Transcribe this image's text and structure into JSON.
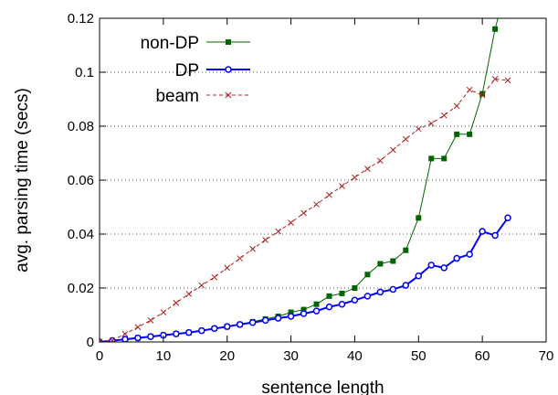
{
  "chart_data": {
    "type": "line",
    "xlabel": "sentence length",
    "ylabel": "avg. parsing time (secs)",
    "xlim": [
      0,
      70
    ],
    "ylim": [
      0,
      0.12
    ],
    "xticks": [
      0,
      10,
      20,
      30,
      40,
      50,
      60,
      70
    ],
    "yticks": [
      0,
      0.02,
      0.04,
      0.06,
      0.08,
      0.1,
      0.12
    ],
    "xtick_labels": [
      "0",
      "10",
      "20",
      "30",
      "40",
      "50",
      "60",
      "70"
    ],
    "ytick_labels": [
      "0",
      "0.02",
      "0.04",
      "0.06",
      "0.08",
      "0.1",
      "0.12"
    ],
    "grid": "horizontal dotted",
    "legend_position": "top-left",
    "series": [
      {
        "name": "non-DP",
        "color": "#006400",
        "marker": "square",
        "x": [
          0,
          2,
          4,
          6,
          8,
          10,
          12,
          14,
          16,
          18,
          20,
          22,
          24,
          26,
          28,
          30,
          32,
          34,
          36,
          38,
          40,
          42,
          44,
          46,
          48,
          50,
          52,
          54,
          56,
          58,
          60,
          62,
          63
        ],
        "y": [
          0,
          0.0005,
          0.001,
          0.0015,
          0.002,
          0.0025,
          0.003,
          0.0035,
          0.0042,
          0.005,
          0.0057,
          0.0065,
          0.0075,
          0.0085,
          0.0095,
          0.011,
          0.012,
          0.014,
          0.017,
          0.018,
          0.02,
          0.025,
          0.029,
          0.03,
          0.034,
          0.046,
          0.068,
          0.068,
          0.077,
          0.077,
          0.092,
          0.116,
          0.125
        ]
      },
      {
        "name": "DP",
        "color": "#0000ff",
        "marker": "circle",
        "x": [
          0,
          2,
          4,
          6,
          8,
          10,
          12,
          14,
          16,
          18,
          20,
          22,
          24,
          26,
          28,
          30,
          32,
          34,
          36,
          38,
          40,
          42,
          44,
          46,
          48,
          50,
          52,
          54,
          56,
          58,
          60,
          62,
          64
        ],
        "y": [
          0,
          0.0005,
          0.001,
          0.0015,
          0.002,
          0.0025,
          0.003,
          0.0035,
          0.0042,
          0.005,
          0.0057,
          0.0065,
          0.0072,
          0.008,
          0.0088,
          0.0095,
          0.0105,
          0.0115,
          0.013,
          0.014,
          0.0155,
          0.017,
          0.0185,
          0.0195,
          0.021,
          0.0245,
          0.0285,
          0.0275,
          0.031,
          0.0325,
          0.041,
          0.0395,
          0.046
        ]
      },
      {
        "name": "beam",
        "color": "#b22222",
        "marker": "x",
        "dashed": true,
        "x": [
          0,
          2,
          4,
          6,
          8,
          10,
          12,
          14,
          16,
          18,
          20,
          22,
          24,
          26,
          28,
          30,
          32,
          34,
          36,
          38,
          40,
          42,
          44,
          46,
          48,
          50,
          52,
          54,
          56,
          58,
          60,
          62,
          64
        ],
        "y": [
          0,
          0.0005,
          0.003,
          0.0055,
          0.008,
          0.011,
          0.0145,
          0.0178,
          0.021,
          0.024,
          0.0275,
          0.031,
          0.0345,
          0.0378,
          0.041,
          0.0442,
          0.0478,
          0.051,
          0.0545,
          0.0578,
          0.061,
          0.0642,
          0.0672,
          0.0712,
          0.0752,
          0.079,
          0.081,
          0.084,
          0.0875,
          0.0935,
          0.0915,
          0.0975,
          0.097
        ]
      }
    ]
  }
}
